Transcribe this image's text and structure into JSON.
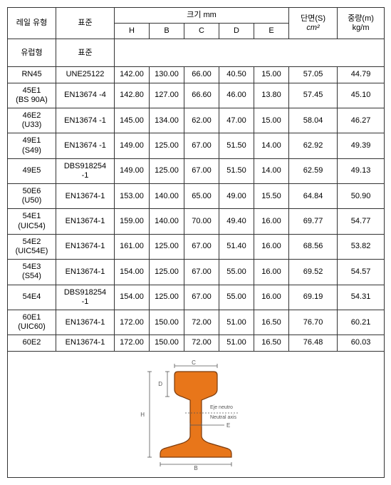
{
  "header": {
    "railType": "레일 유형",
    "standard": "표준",
    "sizeGroup": "크기 mm",
    "H": "H",
    "B": "B",
    "C": "C",
    "D": "D",
    "E": "E",
    "crossSection": "단면(S)",
    "crossSectionUnit": "cm²",
    "weight": "중량(m)",
    "weightUnit": "kg/m"
  },
  "categoryRow": {
    "railType": "유럽형",
    "standard": "표준"
  },
  "rows": [
    {
      "railType": "RN45",
      "standard": "UNE25122",
      "H": "142.00",
      "B": "130.00",
      "C": "66.00",
      "D": "40.50",
      "E": "15.00",
      "S": "57.05",
      "W": "44.79"
    },
    {
      "railType": "45E1\n(BS 90A)",
      "standard": "EN13674 -4",
      "H": "142.80",
      "B": "127.00",
      "C": "66.60",
      "D": "46.00",
      "E": "13.80",
      "S": "57.45",
      "W": "45.10"
    },
    {
      "railType": "46E2\n(U33)",
      "standard": "EN13674 -1",
      "H": "145.00",
      "B": "134.00",
      "C": "62.00",
      "D": "47.00",
      "E": "15.00",
      "S": "58.04",
      "W": "46.27"
    },
    {
      "railType": "49E1\n(S49)",
      "standard": "EN13674 -1",
      "H": "149.00",
      "B": "125.00",
      "C": "67.00",
      "D": "51.50",
      "E": "14.00",
      "S": "62.92",
      "W": "49.39"
    },
    {
      "railType": "49E5",
      "standard": "DBS918254\n-1",
      "H": "149.00",
      "B": "125.00",
      "C": "67.00",
      "D": "51.50",
      "E": "14.00",
      "S": "62.59",
      "W": "49.13"
    },
    {
      "railType": "50E6\n(U50)",
      "standard": "EN13674-1",
      "H": "153.00",
      "B": "140.00",
      "C": "65.00",
      "D": "49.00",
      "E": "15.50",
      "S": "64.84",
      "W": "50.90"
    },
    {
      "railType": "54E1\n(UIC54)",
      "standard": "EN13674-1",
      "H": "159.00",
      "B": "140.00",
      "C": "70.00",
      "D": "49.40",
      "E": "16.00",
      "S": "69.77",
      "W": "54.77"
    },
    {
      "railType": "54E2\n(UIC54E)",
      "standard": "EN13674-1",
      "H": "161.00",
      "B": "125.00",
      "C": "67.00",
      "D": "51.40",
      "E": "16.00",
      "S": "68.56",
      "W": "53.82"
    },
    {
      "railType": "54E3\n(S54)",
      "standard": "EN13674-1",
      "H": "154.00",
      "B": "125.00",
      "C": "67.00",
      "D": "55.00",
      "E": "16.00",
      "S": "69.52",
      "W": "54.57"
    },
    {
      "railType": "54E4",
      "standard": "DBS918254\n-1",
      "H": "154.00",
      "B": "125.00",
      "C": "67.00",
      "D": "55.00",
      "E": "16.00",
      "S": "69.19",
      "W": "54.31"
    },
    {
      "railType": "60E1\n(UIC60)",
      "standard": "EN13674-1",
      "H": "172.00",
      "B": "150.00",
      "C": "72.00",
      "D": "51.00",
      "E": "16.50",
      "S": "76.70",
      "W": "60.21"
    },
    {
      "railType": "60E2",
      "standard": "EN13674-1",
      "H": "172.00",
      "B": "150.00",
      "C": "72.00",
      "D": "51.00",
      "E": "16.50",
      "S": "76.48",
      "W": "60.03"
    }
  ],
  "diagram": {
    "railFill": "#e8761a",
    "railStroke": "#7a3a0c",
    "dimStroke": "#555555",
    "textColor": "#555555",
    "bgColor": "#ffffff",
    "labels": {
      "H": "H",
      "B": "B",
      "C": "C",
      "D": "D",
      "E": "E",
      "neutral1": "Eje neutro",
      "neutral2": "Neutral axis"
    }
  }
}
